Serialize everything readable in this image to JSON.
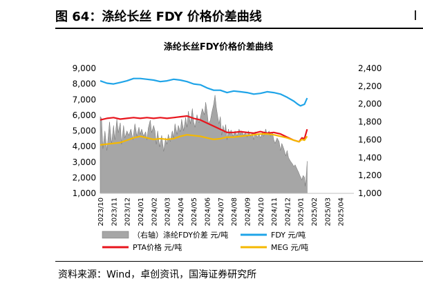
{
  "figure": {
    "title": "图 64：涤纶长丝 FDY 价格价差曲线",
    "source": "资料来源：Wind，卓创资讯，国海证券研究所"
  },
  "chart_data": {
    "type": "line",
    "title": "涤纶长丝FDY价格价差曲线",
    "xlabel": "",
    "ylabel": "",
    "ylabel_right": "",
    "x_ticks": [
      "2023/10",
      "2023/11",
      "2023/12",
      "2024/01",
      "2024/02",
      "2024/03",
      "2024/04",
      "2024/05",
      "2024/06",
      "2024/07",
      "2024/08",
      "2024/09",
      "2024/10",
      "2024/11",
      "2024/12",
      "2025/01",
      "2025/02",
      "2025/03",
      "2025/04"
    ],
    "ylim_left": [
      1000,
      9000
    ],
    "yticks_left": [
      "1,000",
      "2,000",
      "3,000",
      "4,000",
      "5,000",
      "6,000",
      "7,000",
      "8,000",
      "9,000"
    ],
    "ylim_right": [
      1000,
      2400
    ],
    "yticks_right": [
      "1,000",
      "1,200",
      "1,400",
      "1,600",
      "1,800",
      "2,000",
      "2,200",
      "2,400"
    ],
    "grid": false,
    "legend_position": "bottom",
    "series": [
      {
        "name": "（右轴）涤纶FDY价差 元/吨",
        "axis": "right",
        "style": "area",
        "color": "#a6a6a6",
        "points": [
          [
            0,
            1860
          ],
          [
            0.1,
            1840
          ],
          [
            0.2,
            1500
          ],
          [
            0.35,
            1700
          ],
          [
            0.5,
            1480
          ],
          [
            0.7,
            1800
          ],
          [
            0.85,
            1550
          ],
          [
            1.0,
            1760
          ],
          [
            1.1,
            1600
          ],
          [
            1.25,
            1830
          ],
          [
            1.35,
            1680
          ],
          [
            1.5,
            1790
          ],
          [
            1.6,
            1550
          ],
          [
            1.75,
            1760
          ],
          [
            1.85,
            1620
          ],
          [
            2.0,
            1700
          ],
          [
            2.15,
            1650
          ],
          [
            2.3,
            1720
          ],
          [
            2.45,
            1600
          ],
          [
            2.6,
            1780
          ],
          [
            2.75,
            1640
          ],
          [
            2.9,
            1740
          ],
          [
            3.0,
            1660
          ],
          [
            3.1,
            1720
          ],
          [
            3.25,
            1640
          ],
          [
            3.4,
            1690
          ],
          [
            3.5,
            1600
          ],
          [
            3.6,
            1730
          ],
          [
            3.75,
            1820
          ],
          [
            3.85,
            1680
          ],
          [
            4.0,
            1760
          ],
          [
            4.1,
            1700
          ],
          [
            4.2,
            1550
          ],
          [
            4.3,
            1700
          ],
          [
            4.45,
            1520
          ],
          [
            4.6,
            1650
          ],
          [
            4.75,
            1470
          ],
          [
            4.9,
            1620
          ],
          [
            5.0,
            1550
          ],
          [
            5.1,
            1660
          ],
          [
            5.25,
            1580
          ],
          [
            5.4,
            1700
          ],
          [
            5.5,
            1620
          ],
          [
            5.6,
            1780
          ],
          [
            5.75,
            1660
          ],
          [
            5.85,
            1760
          ],
          [
            6.0,
            1690
          ],
          [
            6.1,
            1830
          ],
          [
            6.25,
            1700
          ],
          [
            6.4,
            1850
          ],
          [
            6.5,
            1740
          ],
          [
            6.6,
            1920
          ],
          [
            6.75,
            1780
          ],
          [
            6.9,
            1950
          ],
          [
            7.0,
            1800
          ],
          [
            7.1,
            1740
          ],
          [
            7.25,
            1880
          ],
          [
            7.4,
            1790
          ],
          [
            7.5,
            1850
          ],
          [
            7.65,
            1950
          ],
          [
            7.8,
            1880
          ],
          [
            7.9,
            2020
          ],
          [
            8.0,
            1920
          ],
          [
            8.1,
            1780
          ],
          [
            8.25,
            1820
          ],
          [
            8.35,
            1900
          ],
          [
            8.5,
            2000
          ],
          [
            8.6,
            2100
          ],
          [
            8.7,
            1960
          ],
          [
            8.8,
            1860
          ],
          [
            8.9,
            1780
          ],
          [
            9.0,
            1860
          ],
          [
            9.1,
            1650
          ],
          [
            9.2,
            1760
          ],
          [
            9.3,
            1680
          ],
          [
            9.4,
            1770
          ],
          [
            9.5,
            1600
          ],
          [
            9.6,
            1720
          ],
          [
            9.7,
            1660
          ],
          [
            9.8,
            1710
          ],
          [
            9.95,
            1640
          ],
          [
            10.1,
            1700
          ],
          [
            10.25,
            1640
          ],
          [
            10.4,
            1720
          ],
          [
            10.5,
            1660
          ],
          [
            10.6,
            1700
          ],
          [
            10.75,
            1650
          ],
          [
            10.9,
            1690
          ],
          [
            11.0,
            1630
          ],
          [
            11.1,
            1700
          ],
          [
            11.25,
            1640
          ],
          [
            11.4,
            1680
          ],
          [
            11.5,
            1600
          ],
          [
            11.6,
            1690
          ],
          [
            11.75,
            1630
          ],
          [
            11.9,
            1660
          ],
          [
            12.0,
            1620
          ],
          [
            12.15,
            1680
          ],
          [
            12.25,
            1640
          ],
          [
            12.4,
            1720
          ],
          [
            12.5,
            1660
          ],
          [
            12.65,
            1700
          ],
          [
            12.75,
            1640
          ],
          [
            12.9,
            1680
          ],
          [
            13.0,
            1600
          ],
          [
            13.1,
            1560
          ],
          [
            13.25,
            1620
          ],
          [
            13.4,
            1580
          ],
          [
            13.5,
            1480
          ],
          [
            13.6,
            1560
          ],
          [
            13.75,
            1500
          ],
          [
            13.9,
            1420
          ],
          [
            14.0,
            1480
          ],
          [
            14.1,
            1400
          ],
          [
            14.25,
            1360
          ],
          [
            14.4,
            1330
          ],
          [
            14.5,
            1300
          ],
          [
            14.6,
            1320
          ],
          [
            14.75,
            1270
          ],
          [
            14.85,
            1240
          ],
          [
            14.95,
            1200
          ],
          [
            15.05,
            1170
          ],
          [
            15.1,
            1150
          ],
          [
            15.2,
            1200
          ],
          [
            15.3,
            1180
          ],
          [
            15.35,
            1080
          ],
          [
            15.45,
            1230
          ],
          [
            15.5,
            1360
          ]
        ]
      },
      {
        "name": "FDY 元/吨",
        "axis": "left",
        "style": "line",
        "color": "#1fa4e8",
        "points": [
          [
            0,
            8200
          ],
          [
            0.5,
            8050
          ],
          [
            1.0,
            8000
          ],
          [
            1.5,
            8100
          ],
          [
            2.0,
            8200
          ],
          [
            2.5,
            8350
          ],
          [
            3.0,
            8350
          ],
          [
            3.5,
            8300
          ],
          [
            4.0,
            8250
          ],
          [
            4.5,
            8150
          ],
          [
            5.0,
            8200
          ],
          [
            5.5,
            8300
          ],
          [
            6.0,
            8250
          ],
          [
            6.5,
            8150
          ],
          [
            7.0,
            8000
          ],
          [
            7.5,
            7950
          ],
          [
            8.0,
            7750
          ],
          [
            8.5,
            7600
          ],
          [
            9.0,
            7600
          ],
          [
            9.5,
            7450
          ],
          [
            10.0,
            7550
          ],
          [
            10.5,
            7500
          ],
          [
            11.0,
            7450
          ],
          [
            11.5,
            7350
          ],
          [
            12.0,
            7400
          ],
          [
            12.5,
            7500
          ],
          [
            13.0,
            7450
          ],
          [
            13.5,
            7350
          ],
          [
            14.0,
            7150
          ],
          [
            14.5,
            6900
          ],
          [
            14.8,
            6700
          ],
          [
            15.0,
            6600
          ],
          [
            15.3,
            6700
          ],
          [
            15.5,
            7100
          ]
        ]
      },
      {
        "name": "PTA价格 元/吨",
        "axis": "left",
        "style": "line",
        "color": "#e8141c",
        "points": [
          [
            0,
            5700
          ],
          [
            0.5,
            5800
          ],
          [
            1.0,
            5850
          ],
          [
            1.5,
            5750
          ],
          [
            2.0,
            5800
          ],
          [
            2.5,
            5850
          ],
          [
            3.0,
            5800
          ],
          [
            3.5,
            5850
          ],
          [
            4.0,
            5800
          ],
          [
            4.5,
            5850
          ],
          [
            5.0,
            5800
          ],
          [
            5.5,
            5850
          ],
          [
            6.0,
            5900
          ],
          [
            6.5,
            5950
          ],
          [
            7.0,
            5800
          ],
          [
            7.5,
            5700
          ],
          [
            8.0,
            5500
          ],
          [
            8.5,
            5300
          ],
          [
            9.0,
            5100
          ],
          [
            9.5,
            4900
          ],
          [
            10.0,
            4900
          ],
          [
            10.5,
            4950
          ],
          [
            11.0,
            4900
          ],
          [
            11.5,
            4850
          ],
          [
            12.0,
            4950
          ],
          [
            12.5,
            4850
          ],
          [
            13.0,
            4900
          ],
          [
            13.5,
            4800
          ],
          [
            14.0,
            4600
          ],
          [
            14.5,
            4400
          ],
          [
            14.9,
            4300
          ],
          [
            15.1,
            4550
          ],
          [
            15.3,
            4500
          ],
          [
            15.5,
            5100
          ]
        ]
      },
      {
        "name": "MEG 元/吨",
        "axis": "left",
        "style": "line",
        "color": "#f5b800",
        "points": [
          [
            0,
            4100
          ],
          [
            0.5,
            4150
          ],
          [
            1.0,
            4200
          ],
          [
            1.5,
            4250
          ],
          [
            2.0,
            4400
          ],
          [
            2.5,
            4550
          ],
          [
            3.0,
            4650
          ],
          [
            3.5,
            4550
          ],
          [
            4.0,
            4450
          ],
          [
            4.5,
            4500
          ],
          [
            5.0,
            4450
          ],
          [
            5.5,
            4500
          ],
          [
            6.0,
            4650
          ],
          [
            6.5,
            4750
          ],
          [
            7.0,
            4700
          ],
          [
            7.5,
            4650
          ],
          [
            8.0,
            4550
          ],
          [
            8.5,
            4450
          ],
          [
            9.0,
            4500
          ],
          [
            9.5,
            4600
          ],
          [
            10.0,
            4600
          ],
          [
            10.5,
            4650
          ],
          [
            11.0,
            4700
          ],
          [
            11.5,
            4750
          ],
          [
            12.0,
            4800
          ],
          [
            12.5,
            4800
          ],
          [
            13.0,
            4750
          ],
          [
            13.5,
            4650
          ],
          [
            14.0,
            4550
          ],
          [
            14.5,
            4400
          ],
          [
            14.9,
            4300
          ],
          [
            15.1,
            4450
          ],
          [
            15.3,
            4400
          ],
          [
            15.5,
            4650
          ]
        ]
      }
    ]
  }
}
